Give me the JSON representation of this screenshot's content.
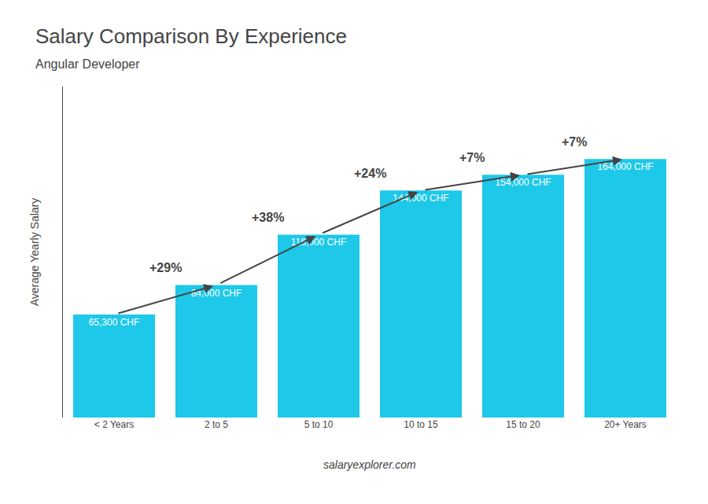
{
  "chart_data": {
    "type": "bar",
    "title": "Salary Comparison By Experience",
    "subtitle": "Angular Developer",
    "categories": [
      "< 2 Years",
      "2 to 5",
      "5 to 10",
      "10 to 15",
      "15 to 20",
      "20+ Years"
    ],
    "values": [
      65300,
      84000,
      116000,
      144000,
      154000,
      164000
    ],
    "value_labels": [
      "65,300 CHF",
      "84,000 CHF",
      "116,000 CHF",
      "144,000 CHF",
      "154,000 CHF",
      "164,000 CHF"
    ],
    "color": "#1EC8E8",
    "ylabel": "Average Yearly Salary",
    "ylim": [
      0,
      210000
    ],
    "grid": false,
    "tick_labels": "x",
    "annotations": [
      {
        "text": "+29%",
        "from": "< 2 Years",
        "to": "2 to 5"
      },
      {
        "text": "+38%",
        "from": "2 to 5",
        "to": "5 to 10"
      },
      {
        "text": "+24%",
        "from": "5 to 10",
        "to": "10 to 15"
      },
      {
        "text": "+7%",
        "from": "10 to 15",
        "to": "15 to 20"
      },
      {
        "text": "+7%",
        "from": "15 to 20",
        "to": "20+ Years"
      },
      {
        "text": "salaryexplorer.com"
      }
    ]
  }
}
